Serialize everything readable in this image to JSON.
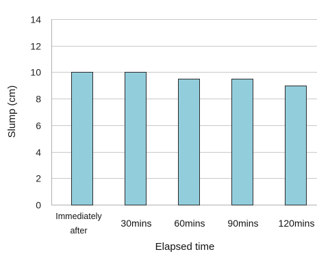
{
  "chart_data": {
    "type": "bar",
    "categories": [
      "Immediately after",
      "30mins",
      "60mins",
      "90mins",
      "120mins"
    ],
    "category_label_lines": [
      [
        "Immediately",
        "after"
      ],
      [
        "30mins"
      ],
      [
        "60mins"
      ],
      [
        "90mins"
      ],
      [
        "120mins"
      ]
    ],
    "values": [
      10,
      10,
      9.5,
      9.5,
      9
    ],
    "xlabel": "Elapsed time",
    "ylabel": "Slump (cm)",
    "ylim": [
      0,
      14
    ],
    "yticks": [
      0,
      2,
      4,
      6,
      8,
      10,
      12,
      14
    ],
    "grid": true,
    "legend": "none",
    "bar_color": "#92cddc",
    "bar_edge_color": "#2b2b2b",
    "grid_color": "#c8c8c8"
  }
}
